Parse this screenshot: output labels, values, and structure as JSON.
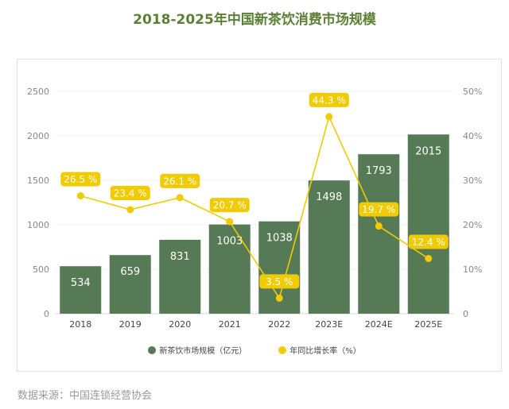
{
  "chart_data": {
    "type": "bar+line",
    "title": "2018-2025年中国新茶饮消费市场规模",
    "categories": [
      "2018",
      "2019",
      "2020",
      "2021",
      "2022",
      "2023E",
      "2024E",
      "2025E"
    ],
    "series": [
      {
        "name": "新茶饮市场规模（亿元）",
        "type": "bar",
        "axis": "left",
        "color": "#567a55",
        "values": [
          534,
          659,
          831,
          1003,
          1038,
          1498,
          1793,
          2015
        ]
      },
      {
        "name": "年同比增长率（%）",
        "type": "line",
        "axis": "right",
        "color": "#f0cb00",
        "values": [
          26.5,
          23.4,
          26.1,
          20.7,
          3.5,
          44.3,
          19.7,
          12.4
        ],
        "labels": [
          "26.5 %",
          "23.4 %",
          "26.1 %",
          "20.7 %",
          "3.5 %",
          "44.3 %",
          "19.7 %",
          "12.4 %"
        ]
      }
    ],
    "left_axis": {
      "ylim": [
        0,
        2500
      ],
      "ticks": [
        "0",
        "500",
        "1000",
        "1500",
        "2000",
        "2500"
      ]
    },
    "right_axis": {
      "ylim": [
        0,
        50
      ],
      "ticks": [
        "0",
        "10%",
        "20%",
        "30%",
        "40%",
        "50%"
      ]
    },
    "grid": true,
    "legend_position": "bottom"
  },
  "source": "数据来源：中国连锁经营协会"
}
